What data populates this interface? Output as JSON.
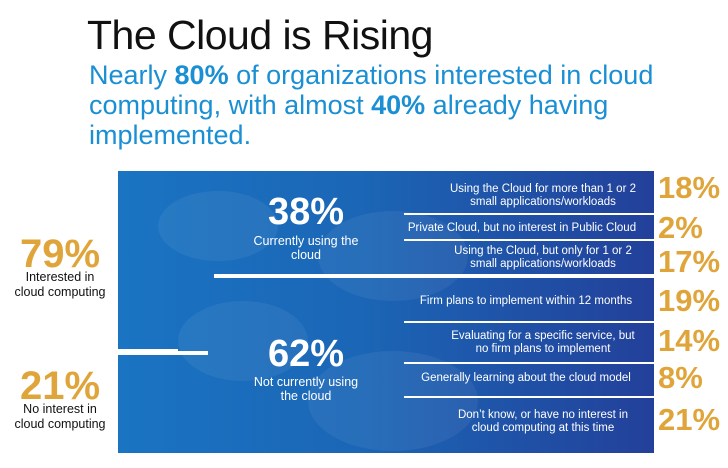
{
  "header": {
    "title": "The Cloud is Rising",
    "subtitle_part1": "Nearly ",
    "subtitle_bold1": "80%",
    "subtitle_part2": " of organizations interested in cloud computing, with almost ",
    "subtitle_bold2": "40%",
    "subtitle_part3": " already having implemented."
  },
  "left": {
    "interested_pct": "79%",
    "interested_label": "Interested in cloud computing",
    "no_interest_pct": "21%",
    "no_interest_label": "No interest in cloud computing"
  },
  "center": {
    "using_pct": "38%",
    "using_label": "Currently using the cloud",
    "not_using_pct": "62%",
    "not_using_label": "Not currently using the cloud"
  },
  "rows": [
    {
      "label": "Using the Cloud for more than 1 or 2 small applications/workloads",
      "pct": "18%"
    },
    {
      "label": "Private Cloud, but no interest in Public Cloud",
      "pct": "2%"
    },
    {
      "label": "Using the Cloud, but only for 1 or 2 small applications/workloads",
      "pct": "17%"
    },
    {
      "label": "Firm plans to implement within 12 months",
      "pct": "19%"
    },
    {
      "label": "Evaluating for a specific service, but no firm plans to implement",
      "pct": "14%"
    },
    {
      "label": "Generally learning about the cloud model",
      "pct": "8%"
    },
    {
      "label": "Don’t know, or have no interest in cloud computing at this time",
      "pct": "21%"
    }
  ],
  "colors": {
    "blue_accent": "#1a8fd3",
    "gold": "#e0a53a",
    "panel_blue": "#1b66b6"
  }
}
